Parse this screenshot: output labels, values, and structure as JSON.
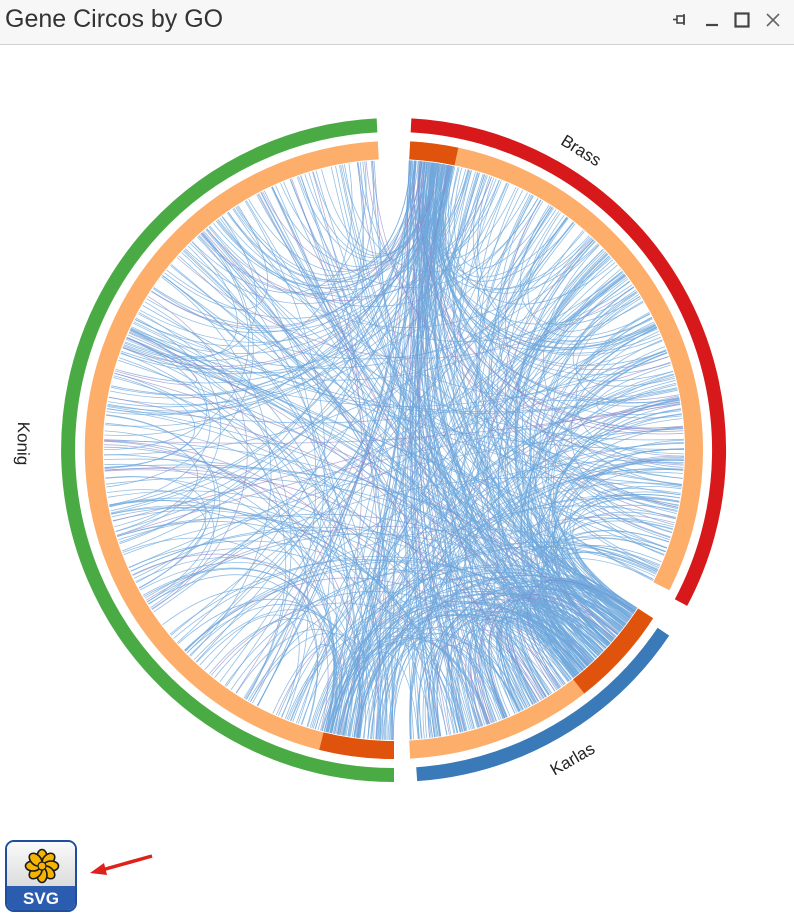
{
  "window": {
    "title": "Gene Circos by GO",
    "controls": [
      "pin-icon",
      "minimize-icon",
      "maximize-icon",
      "close-icon"
    ]
  },
  "chart_data": {
    "type": "chord",
    "segments": [
      {
        "name": "Brass",
        "color": "#d7191c"
      },
      {
        "name": "Karlas",
        "color": "#3a7ab8"
      },
      {
        "name": "Konig",
        "color": "#4aab45"
      }
    ],
    "inner_band_color": "#fdae6b",
    "highlight_color": "#e0530d",
    "link_colors": [
      "#6fa8dc",
      "#8e7cc3"
    ]
  },
  "export": {
    "label": "SVG",
    "icon": "flower-icon"
  },
  "annotation": {
    "icon": "red-arrow-icon",
    "color": "#e0201a"
  }
}
